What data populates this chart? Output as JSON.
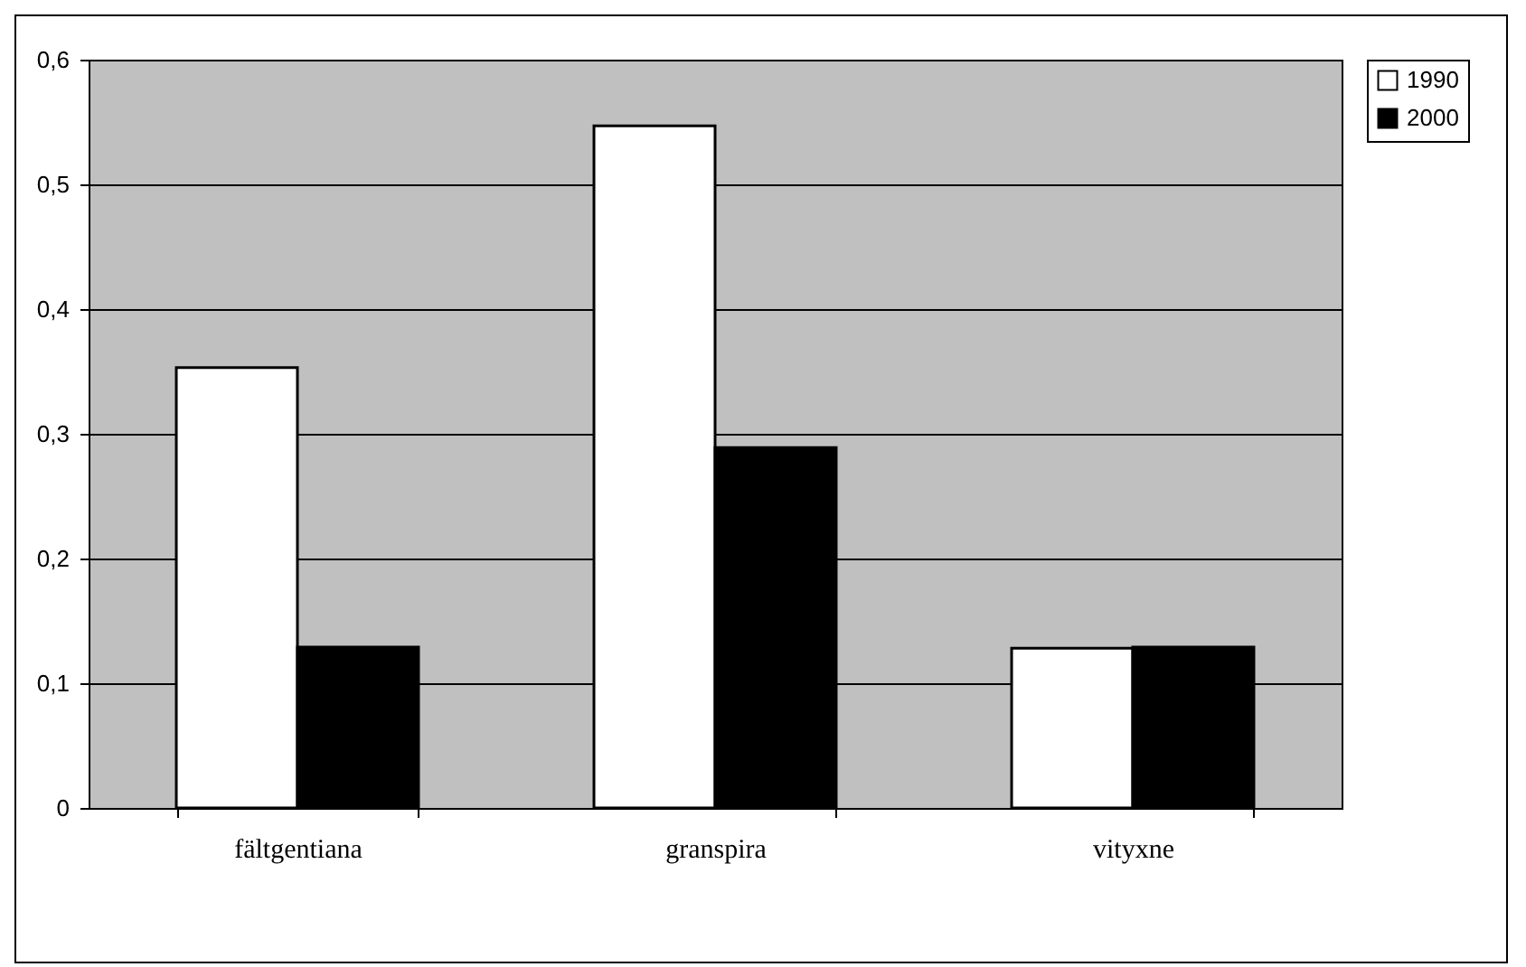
{
  "chart_data": {
    "type": "bar",
    "categories": [
      "fältgentiana",
      "granspira",
      "vityxne"
    ],
    "series": [
      {
        "name": "1990",
        "color": "#ffffff",
        "values": [
          0.353,
          0.547,
          0.128
        ]
      },
      {
        "name": "2000",
        "color": "#000000",
        "values": [
          0.129,
          0.289,
          0.129
        ]
      }
    ],
    "ylim": [
      0,
      0.6
    ],
    "yticks": [
      {
        "value": 0,
        "label": "0"
      },
      {
        "value": 0.1,
        "label": "0,1"
      },
      {
        "value": 0.2,
        "label": "0,2"
      },
      {
        "value": 0.3,
        "label": "0,3"
      },
      {
        "value": 0.4,
        "label": "0,4"
      },
      {
        "value": 0.5,
        "label": "0,5"
      },
      {
        "value": 0.6,
        "label": "0,6"
      }
    ],
    "grid": "y",
    "legend": "right"
  }
}
